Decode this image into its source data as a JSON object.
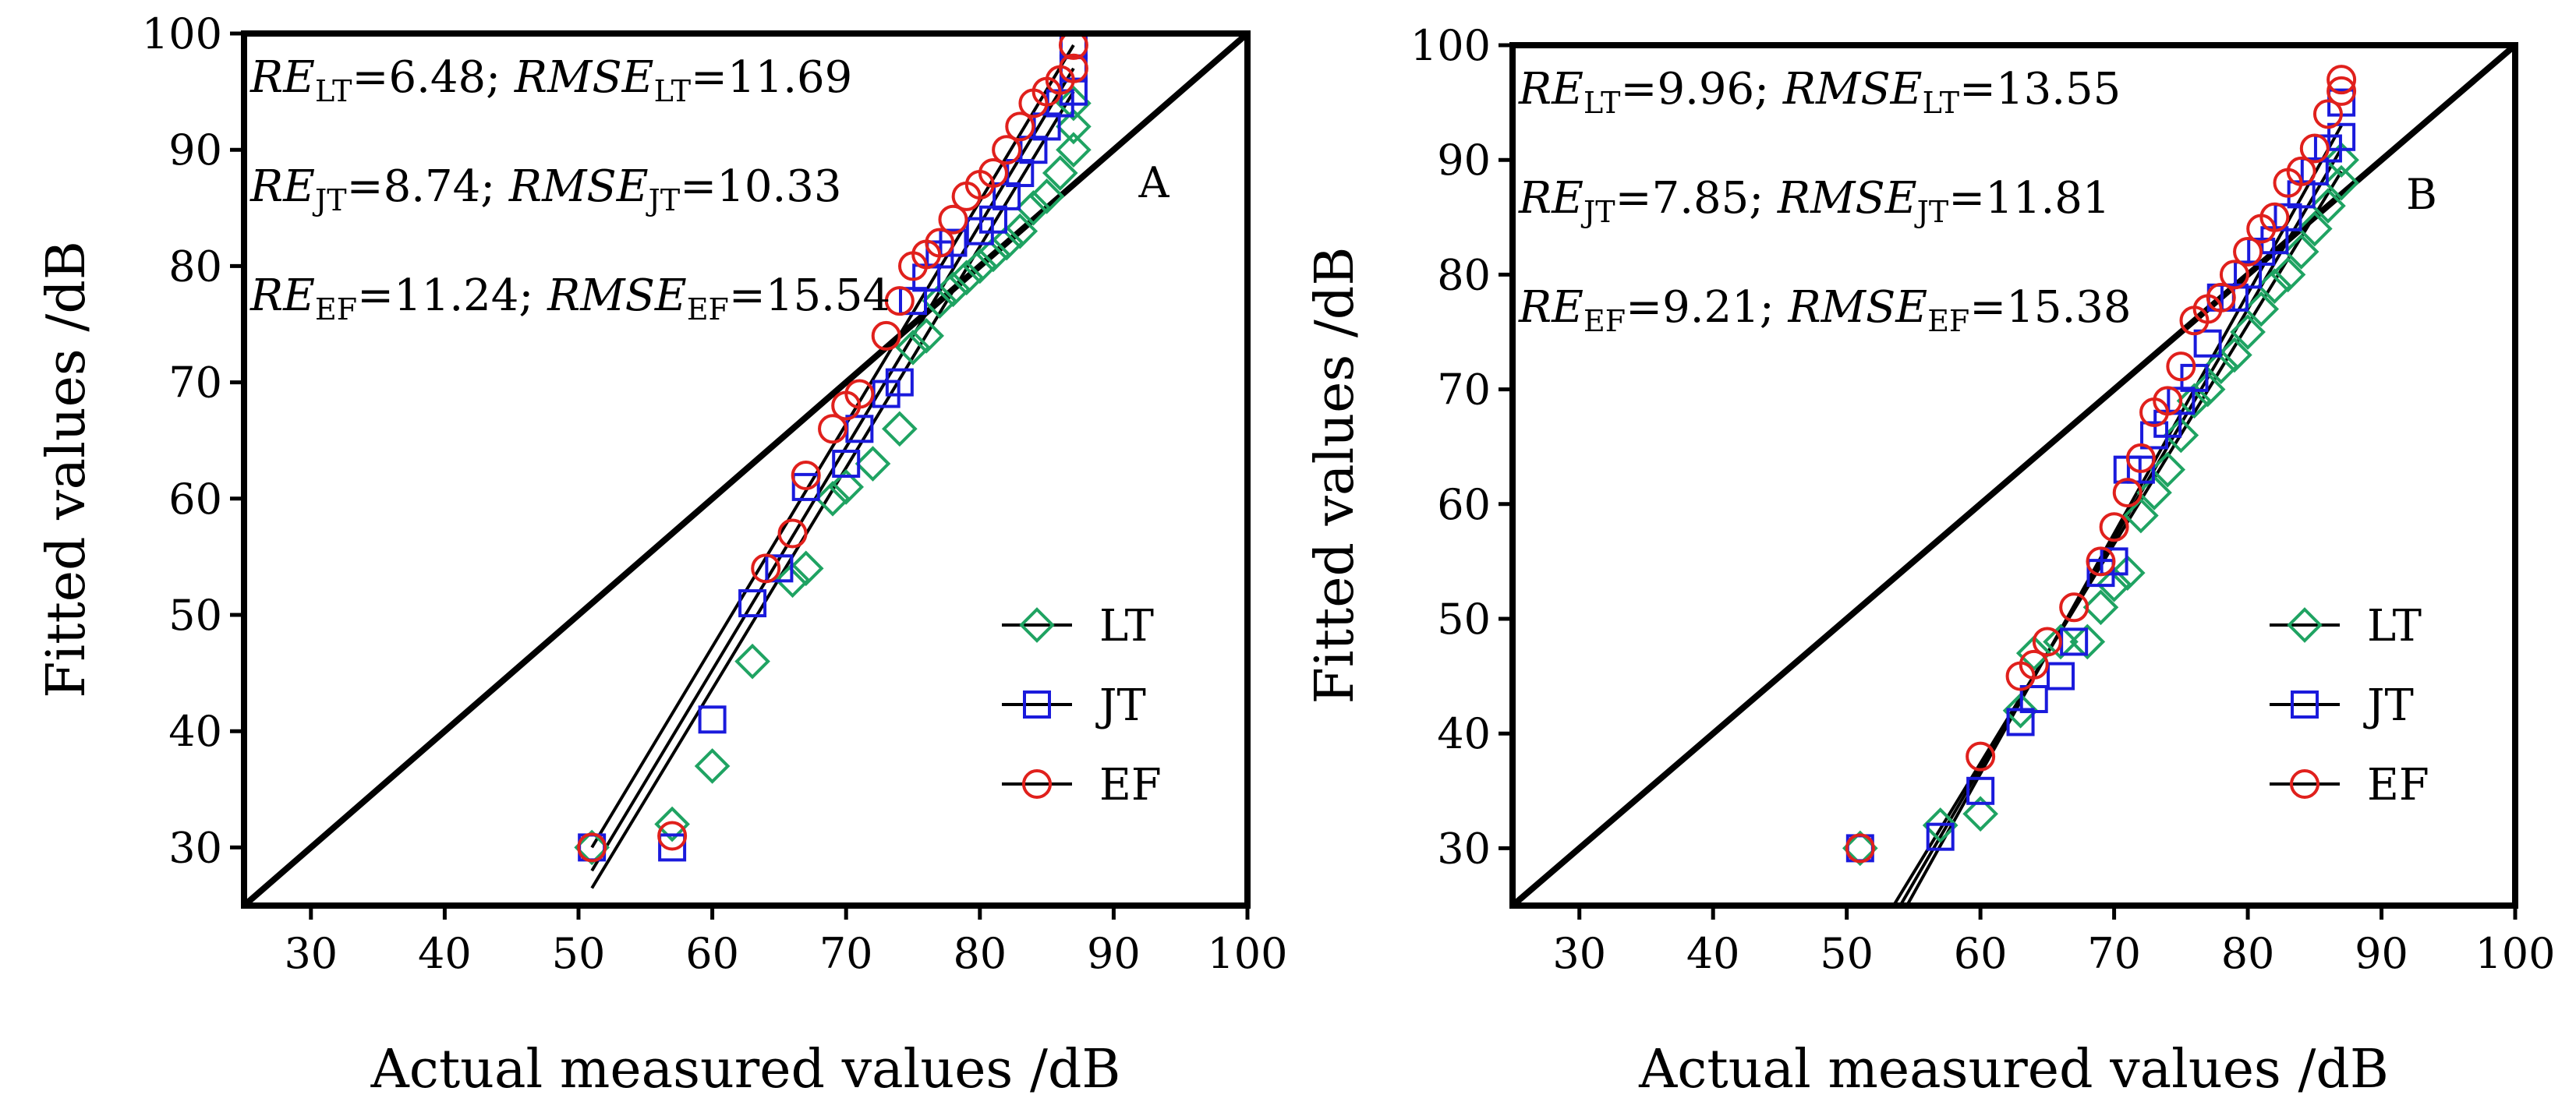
{
  "chart_data": [
    {
      "panel_label": "A",
      "type": "scatter",
      "xlabel": "Actual measured values /dB",
      "ylabel": "Fitted values /dB",
      "xlim": [
        25,
        100
      ],
      "ylim": [
        25,
        100
      ],
      "x_ticks": [
        "30",
        "40",
        "50",
        "60",
        "70",
        "80",
        "90",
        "100"
      ],
      "y_ticks": [
        "30",
        "40",
        "50",
        "60",
        "70",
        "80",
        "90",
        "100"
      ],
      "grid": false,
      "legend_position": "bottom-right",
      "reference_line": {
        "x": [
          25,
          100
        ],
        "y": [
          25,
          100
        ]
      },
      "metrics": [
        {
          "re_label": "RE",
          "sub": "LT",
          "re_value": "=6.48; ",
          "rmse_label": "RMSE",
          "rmse_value": "=11.69"
        },
        {
          "re_label": "RE",
          "sub": "JT",
          "re_value": "=8.74; ",
          "rmse_label": "RMSE",
          "rmse_value": "=10.33"
        },
        {
          "re_label": "RE",
          "sub": "EF",
          "re_value": "=11.24; ",
          "rmse_label": "RMSE",
          "rmse_value": "=15.54"
        }
      ],
      "series": [
        {
          "name": "LT",
          "marker": "diamond",
          "color": "#1fa362",
          "x": [
            51,
            57,
            60,
            63,
            66,
            67,
            69,
            70,
            72,
            74,
            75,
            76,
            77,
            78,
            79,
            80,
            81,
            82,
            83,
            84,
            85,
            86,
            87,
            87,
            87
          ],
          "y": [
            30,
            32,
            37,
            46,
            53,
            54,
            60,
            61,
            63,
            66,
            73,
            74,
            77,
            78,
            79,
            80,
            81,
            82,
            83,
            85,
            86,
            88,
            90,
            92,
            94
          ],
          "fit": {
            "x": [
              51,
              87
            ],
            "y": [
              26.5,
              95
            ]
          }
        },
        {
          "name": "JT",
          "marker": "square",
          "color": "#1a1adc",
          "x": [
            51,
            57,
            60,
            63,
            65,
            67,
            70,
            71,
            73,
            74,
            75,
            76,
            77,
            78,
            80,
            81,
            82,
            83,
            84,
            85,
            86,
            87,
            87,
            87
          ],
          "y": [
            30,
            30,
            41,
            51,
            54,
            61,
            63,
            66,
            69,
            70,
            77,
            79,
            81,
            82,
            83,
            84,
            86,
            88,
            90,
            92,
            94,
            95,
            97,
            99
          ],
          "fit": {
            "x": [
              51,
              87
            ],
            "y": [
              28,
              97
            ]
          }
        },
        {
          "name": "EF",
          "marker": "circle",
          "color": "#e0201c",
          "x": [
            51,
            57,
            64,
            66,
            67,
            69,
            70,
            71,
            73,
            74,
            75,
            76,
            77,
            78,
            79,
            80,
            81,
            82,
            83,
            84,
            85,
            86,
            87,
            87
          ],
          "y": [
            30,
            31,
            54,
            57,
            62,
            66,
            68,
            69,
            74,
            77,
            80,
            81,
            82,
            84,
            86,
            87,
            88,
            90,
            92,
            94,
            95,
            96,
            97,
            99
          ],
          "fit": {
            "x": [
              51,
              87
            ],
            "y": [
              30,
              99
            ]
          }
        }
      ]
    },
    {
      "panel_label": "B",
      "type": "scatter",
      "xlabel": "Actual measured values /dB",
      "ylabel": "Fitted values /dB",
      "xlim": [
        25,
        100
      ],
      "ylim": [
        25,
        100
      ],
      "x_ticks": [
        "30",
        "40",
        "50",
        "60",
        "70",
        "80",
        "90",
        "100"
      ],
      "y_ticks": [
        "30",
        "40",
        "50",
        "60",
        "70",
        "80",
        "90",
        "100"
      ],
      "grid": false,
      "legend_position": "bottom-right",
      "reference_line": {
        "x": [
          25,
          100
        ],
        "y": [
          25,
          100
        ]
      },
      "metrics": [
        {
          "re_label": "RE",
          "sub": "LT",
          "re_value": "=9.96; ",
          "rmse_label": "RMSE",
          "rmse_value": "=13.55"
        },
        {
          "re_label": "RE",
          "sub": "JT",
          "re_value": "=7.85; ",
          "rmse_label": "RMSE",
          "rmse_value": "=11.81"
        },
        {
          "re_label": "RE",
          "sub": "EF",
          "re_value": "=9.21; ",
          "rmse_label": "RMSE",
          "rmse_value": "=15.38"
        }
      ],
      "series": [
        {
          "name": "LT",
          "marker": "diamond",
          "color": "#1fa362",
          "x": [
            51,
            57,
            60,
            63,
            64,
            66,
            68,
            69,
            70,
            71,
            72,
            73,
            74,
            75,
            76,
            77,
            78,
            79,
            80,
            81,
            82,
            83,
            84,
            85,
            86,
            87,
            87
          ],
          "y": [
            30,
            32,
            33,
            42,
            47,
            48,
            48,
            51,
            53,
            54,
            59,
            61,
            63,
            66,
            69,
            70,
            72,
            73,
            75,
            77,
            79,
            80,
            82,
            84,
            86,
            88,
            90
          ],
          "fit": {
            "x": [
              53.5,
              87
            ],
            "y": [
              25,
              89
            ]
          }
        },
        {
          "name": "JT",
          "marker": "square",
          "color": "#1a1adc",
          "x": [
            51,
            57,
            60,
            63,
            64,
            66,
            67,
            69,
            70,
            71,
            72,
            73,
            74,
            75,
            76,
            77,
            78,
            79,
            80,
            81,
            82,
            83,
            84,
            85,
            86,
            87,
            87
          ],
          "y": [
            30,
            31,
            35,
            41,
            43,
            45,
            48,
            54,
            55,
            63,
            63,
            66,
            67,
            69,
            71,
            74,
            78,
            78,
            80,
            82,
            83,
            85,
            87,
            89,
            91,
            92,
            95
          ],
          "fit": {
            "x": [
              54,
              87
            ],
            "y": [
              25,
              91
            ]
          }
        },
        {
          "name": "EF",
          "marker": "circle",
          "color": "#e0201c",
          "x": [
            51,
            60,
            63,
            64,
            65,
            67,
            69,
            70,
            71,
            72,
            73,
            74,
            75,
            76,
            77,
            78,
            79,
            80,
            81,
            82,
            83,
            84,
            85,
            86,
            87,
            87
          ],
          "y": [
            30,
            38,
            45,
            46,
            48,
            51,
            55,
            58,
            61,
            64,
            68,
            69,
            72,
            76,
            77,
            78,
            80,
            82,
            84,
            85,
            88,
            89,
            91,
            94,
            96,
            97
          ],
          "fit": {
            "x": [
              54.5,
              87
            ],
            "y": [
              25,
              93
            ]
          }
        }
      ]
    }
  ]
}
